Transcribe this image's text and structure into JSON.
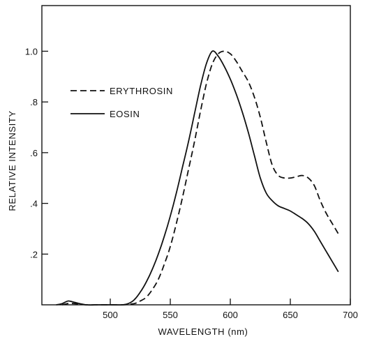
{
  "chart_data": {
    "type": "line",
    "xlabel": "WAVELENGTH (nm)",
    "ylabel": "RELATIVE INTENSITY",
    "xlim": [
      443,
      700
    ],
    "ylim": [
      0,
      1.18
    ],
    "x_ticks": [
      500,
      550,
      600,
      650,
      700
    ],
    "x_tick_labels": [
      "500",
      "550",
      "600",
      "650",
      "700"
    ],
    "y_ticks": [
      0.2,
      0.4,
      0.6,
      0.8,
      1.0
    ],
    "y_tick_labels": [
      ".2",
      ".4",
      ".6",
      ".8",
      "1.0"
    ],
    "grid": false,
    "legend_position": "upper-left",
    "series": [
      {
        "name": "ERYTHROSIN",
        "style": "dashed",
        "color": "#111111",
        "x": [
          460,
          465,
          470,
          480,
          490,
          500,
          510,
          520,
          525,
          530,
          535,
          540,
          545,
          550,
          555,
          560,
          565,
          570,
          575,
          580,
          585,
          590,
          595,
          600,
          605,
          610,
          615,
          620,
          625,
          630,
          635,
          640,
          645,
          650,
          655,
          660,
          665,
          670,
          675,
          680,
          685,
          690
        ],
        "y": [
          0.0,
          0.005,
          0.005,
          0.0,
          0.0,
          0.0,
          0.0,
          0.005,
          0.015,
          0.03,
          0.06,
          0.1,
          0.16,
          0.23,
          0.32,
          0.42,
          0.53,
          0.64,
          0.76,
          0.87,
          0.95,
          0.99,
          1.0,
          0.99,
          0.96,
          0.92,
          0.88,
          0.82,
          0.74,
          0.64,
          0.55,
          0.51,
          0.5,
          0.5,
          0.505,
          0.51,
          0.5,
          0.47,
          0.41,
          0.36,
          0.32,
          0.28
        ]
      },
      {
        "name": "EOSIN",
        "style": "solid",
        "color": "#111111",
        "x": [
          455,
          460,
          465,
          470,
          480,
          490,
          500,
          510,
          515,
          520,
          525,
          530,
          535,
          540,
          545,
          550,
          555,
          560,
          565,
          570,
          575,
          580,
          585,
          590,
          595,
          600,
          605,
          610,
          615,
          620,
          625,
          630,
          635,
          640,
          645,
          650,
          655,
          660,
          665,
          670,
          675,
          680,
          685,
          690
        ],
        "y": [
          0.0,
          0.005,
          0.015,
          0.01,
          0.0,
          0.0,
          0.0,
          0.0,
          0.005,
          0.02,
          0.05,
          0.09,
          0.14,
          0.2,
          0.27,
          0.35,
          0.44,
          0.54,
          0.64,
          0.75,
          0.86,
          0.95,
          1.0,
          0.98,
          0.94,
          0.89,
          0.83,
          0.76,
          0.68,
          0.59,
          0.5,
          0.44,
          0.41,
          0.39,
          0.38,
          0.37,
          0.355,
          0.34,
          0.32,
          0.29,
          0.25,
          0.21,
          0.17,
          0.13
        ]
      }
    ]
  }
}
